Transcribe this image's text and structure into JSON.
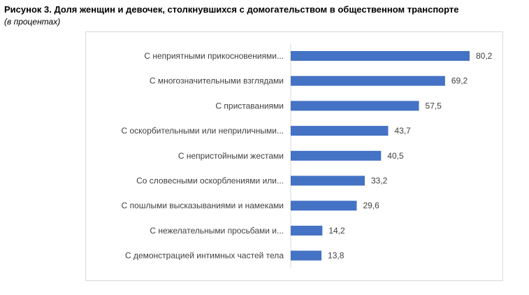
{
  "figure": {
    "title": "Рисунок 3. Доля женщин и девочек, столкнувшихся с домогательством в общественном транспорте",
    "subtitle": "(в процентах)"
  },
  "chart_data": {
    "type": "bar",
    "orientation": "horizontal",
    "categories": [
      "С неприятными прикосновениями...",
      "С многозначительными взглядами",
      "С приставаниями",
      "С оскорбительными или неприличными...",
      "С непристойными жестами",
      "Со словесными оскорблениями или...",
      "С пошлыми высказываниями и намеками",
      "С  нежелательными просьбами и...",
      "С демонстрацией интимных частей тела"
    ],
    "values": [
      80.2,
      69.2,
      57.5,
      43.7,
      40.5,
      33.2,
      29.6,
      14.2,
      13.8
    ],
    "value_labels": [
      "80,2",
      "69,2",
      "57,5",
      "43,7",
      "40,5",
      "33,2",
      "29,6",
      "14,2",
      "13,8"
    ],
    "xlim": [
      0,
      80.2
    ],
    "bar_color": "#4472c4",
    "grid": false,
    "legend": "none"
  }
}
